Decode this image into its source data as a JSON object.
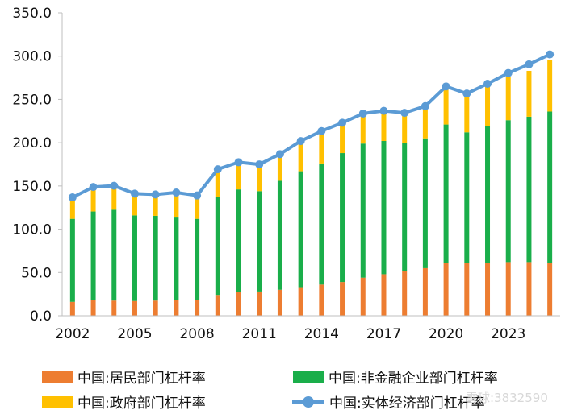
{
  "chart_data": {
    "type": "bar",
    "stacked": true,
    "title": "",
    "xlabel": "",
    "ylabel": "",
    "ylim": [
      0,
      350
    ],
    "yticks": [
      "0.0",
      "50.0",
      "100.0",
      "150.0",
      "200.0",
      "250.0",
      "300.0",
      "350.0"
    ],
    "ytick_values": [
      0,
      50,
      100,
      150,
      200,
      250,
      300,
      350
    ],
    "xtick_labels": [
      "2002",
      "2005",
      "2008",
      "2011",
      "2014",
      "2017",
      "2020",
      "2023"
    ],
    "categories": [
      "2002",
      "2003",
      "2004",
      "2005",
      "2006",
      "2007",
      "2008",
      "2009",
      "2010",
      "2011",
      "2012",
      "2013",
      "2014",
      "2015",
      "2016",
      "2017",
      "2018",
      "2019",
      "2020",
      "2021",
      "2022",
      "2023",
      "2024",
      "2025"
    ],
    "series": [
      {
        "name": "中国:居民部门杠杆率",
        "kind": "bar",
        "color": "#ed7d31",
        "values": [
          16,
          18.5,
          17.5,
          17,
          17.5,
          18.5,
          18,
          24,
          27,
          28,
          30,
          33,
          36,
          39,
          44,
          48,
          52,
          55,
          61,
          61,
          61,
          62,
          62,
          61
        ]
      },
      {
        "name": "中国:非金融企业部门杠杆率",
        "kind": "bar",
        "color": "#1aae4a",
        "values": [
          96,
          102,
          105,
          99,
          98,
          95,
          94,
          113,
          119,
          116,
          126,
          134,
          140,
          149,
          155,
          154,
          148,
          150,
          160,
          151,
          158,
          164,
          168,
          175
        ]
      },
      {
        "name": "中国:政府部门杠杆率",
        "kind": "bar",
        "color": "#ffc000",
        "values": [
          22,
          26,
          25,
          24,
          24,
          27,
          26,
          31,
          30,
          31,
          29,
          33,
          36,
          34,
          33,
          34,
          34,
          36,
          44,
          44,
          47,
          50,
          53,
          60
        ]
      },
      {
        "name": "中国:实体经济部门杠杆率",
        "kind": "line",
        "color": "#5b9bd5",
        "values": [
          136.8,
          148.8,
          150.2,
          141.1,
          140.2,
          142.4,
          139.0,
          169.3,
          177.4,
          174.9,
          186.8,
          201.9,
          213.4,
          223.0,
          233.7,
          236.8,
          234.5,
          242.2,
          265.0,
          256.8,
          268.1,
          280.5,
          290.6,
          302.0
        ]
      }
    ]
  },
  "legend": {
    "resident": "中国:居民部门杠杆率",
    "nonfin": "中国:非金融企业部门杠杆率",
    "gov": "中国:政府部门杠杆率",
    "total": "中国:实体经济部门杠杆率"
  },
  "watermark": "雪球:3832590",
  "colors": {
    "resident": "#ed7d31",
    "nonfin": "#1aae4a",
    "gov": "#ffc000",
    "total": "#5b9bd5",
    "axis": "#bfbfbf"
  }
}
